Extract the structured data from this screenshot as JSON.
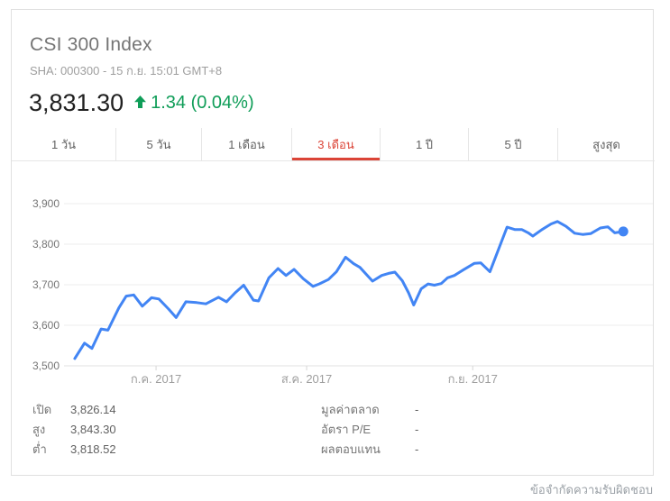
{
  "header": {
    "title": "CSI 300 Index",
    "subtitle": "SHA: 000300 - 15 ก.ย. 15:01 GMT+8",
    "price": "3,831.30",
    "change_direction": "up",
    "change_text": "1.34 (0.04%)"
  },
  "colors": {
    "line_blue": "#4285f4",
    "up_green": "#0f9d58",
    "active_red": "#db4437",
    "grid_gray": "#ececec",
    "axis_gray": "#e0e0e0"
  },
  "tabs": [
    {
      "label": "1 วัน",
      "active": false
    },
    {
      "label": "5 วัน",
      "active": false
    },
    {
      "label": "1 เดือน",
      "active": false
    },
    {
      "label": "3 เดือน",
      "active": true
    },
    {
      "label": "1 ปี",
      "active": false
    },
    {
      "label": "5 ปี",
      "active": false
    },
    {
      "label": "สูงสุด",
      "active": false
    }
  ],
  "chart_data": {
    "type": "line",
    "title": "CSI 300 Index - 3 month price history",
    "ylim": [
      3500,
      3900
    ],
    "grid": true,
    "yticks": [
      {
        "v": 3900,
        "label": "3,900"
      },
      {
        "v": 3800,
        "label": "3,800"
      },
      {
        "v": 3700,
        "label": "3,700"
      },
      {
        "v": 3600,
        "label": "3,600"
      },
      {
        "v": 3500,
        "label": "3,500"
      }
    ],
    "xticks": [
      {
        "f": 0.156,
        "label": "ก.ค. 2017"
      },
      {
        "f": 0.419,
        "label": "ส.ค. 2017"
      },
      {
        "f": 0.709,
        "label": "ก.ย. 2017"
      }
    ],
    "series": [
      {
        "name": "CSI 300 Index",
        "color": "#4285f4",
        "end_dot": true,
        "points": [
          [
            0.014,
            3518
          ],
          [
            0.031,
            3556
          ],
          [
            0.044,
            3543
          ],
          [
            0.06,
            3591
          ],
          [
            0.072,
            3588
          ],
          [
            0.091,
            3643
          ],
          [
            0.104,
            3672
          ],
          [
            0.117,
            3675
          ],
          [
            0.132,
            3647
          ],
          [
            0.148,
            3668
          ],
          [
            0.161,
            3665
          ],
          [
            0.178,
            3640
          ],
          [
            0.191,
            3619
          ],
          [
            0.208,
            3658
          ],
          [
            0.227,
            3656
          ],
          [
            0.243,
            3653
          ],
          [
            0.265,
            3669
          ],
          [
            0.279,
            3658
          ],
          [
            0.294,
            3680
          ],
          [
            0.309,
            3699
          ],
          [
            0.326,
            3662
          ],
          [
            0.335,
            3660
          ],
          [
            0.353,
            3717
          ],
          [
            0.369,
            3740
          ],
          [
            0.383,
            3723
          ],
          [
            0.397,
            3738
          ],
          [
            0.413,
            3715
          ],
          [
            0.43,
            3696
          ],
          [
            0.441,
            3702
          ],
          [
            0.457,
            3713
          ],
          [
            0.471,
            3732
          ],
          [
            0.487,
            3768
          ],
          [
            0.501,
            3752
          ],
          [
            0.512,
            3743
          ],
          [
            0.534,
            3709
          ],
          [
            0.55,
            3723
          ],
          [
            0.562,
            3728
          ],
          [
            0.573,
            3731
          ],
          [
            0.586,
            3710
          ],
          [
            0.597,
            3680
          ],
          [
            0.606,
            3650
          ],
          [
            0.619,
            3690
          ],
          [
            0.631,
            3702
          ],
          [
            0.642,
            3699
          ],
          [
            0.654,
            3703
          ],
          [
            0.665,
            3717
          ],
          [
            0.677,
            3723
          ],
          [
            0.693,
            3737
          ],
          [
            0.712,
            3753
          ],
          [
            0.723,
            3754
          ],
          [
            0.739,
            3732
          ],
          [
            0.769,
            3842
          ],
          [
            0.783,
            3836
          ],
          [
            0.795,
            3836
          ],
          [
            0.806,
            3828
          ],
          [
            0.814,
            3820
          ],
          [
            0.83,
            3836
          ],
          [
            0.846,
            3850
          ],
          [
            0.857,
            3856
          ],
          [
            0.872,
            3844
          ],
          [
            0.887,
            3827
          ],
          [
            0.901,
            3824
          ],
          [
            0.915,
            3826
          ],
          [
            0.932,
            3840
          ],
          [
            0.945,
            3843
          ],
          [
            0.957,
            3828
          ],
          [
            0.972,
            3831.3
          ]
        ]
      }
    ]
  },
  "stats": {
    "left": [
      {
        "label": "เปิด",
        "value": "3,826.14"
      },
      {
        "label": "สูง",
        "value": "3,843.30"
      },
      {
        "label": "ต่ำ",
        "value": "3,818.52"
      }
    ],
    "right": [
      {
        "label": "มูลค่าตลาด",
        "value": "-"
      },
      {
        "label": "อัตรา P/E",
        "value": "-"
      },
      {
        "label": "ผลตอบแทน",
        "value": "-"
      }
    ]
  },
  "footer": {
    "disclaimer": "ข้อจำกัดความรับผิดชอบ"
  }
}
